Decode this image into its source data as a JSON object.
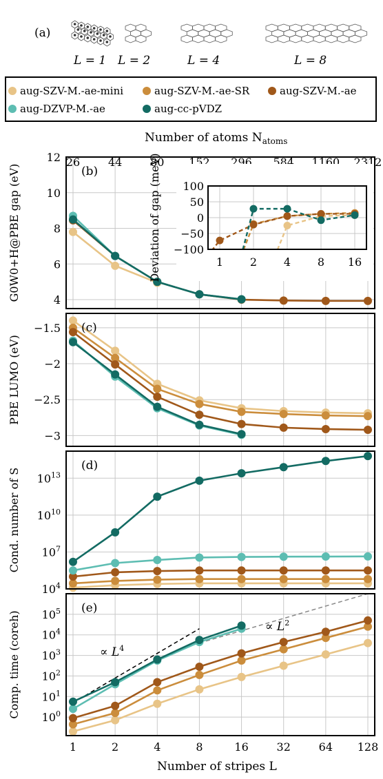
{
  "panel_a": {
    "label": "(a)",
    "items": [
      {
        "label": "L = 1",
        "rows": 3,
        "cols": 6
      },
      {
        "label": "L = 2",
        "rows": 3,
        "cols": 2
      },
      {
        "label": "L = 4",
        "rows": 3,
        "cols": 4
      },
      {
        "label": "L = 8",
        "rows": 3,
        "cols": 8
      }
    ]
  },
  "legend": [
    {
      "name": "aug-SZV-M.-ae-mini",
      "color": "#e8c487"
    },
    {
      "name": "aug-SZV-M.-ae-SR",
      "color": "#cb8d3c"
    },
    {
      "name": "aug-SZV-M.-ae",
      "color": "#a0581a"
    },
    {
      "name": "aug-DZVP-M.-ae",
      "color": "#5dbdb2"
    },
    {
      "name": "aug-cc-pVDZ",
      "color": "#136b63"
    }
  ],
  "top_axis": {
    "title": "Number of atoms N",
    "title_sub": "atoms",
    "ticks": [
      "26",
      "44",
      "80",
      "152",
      "296",
      "584",
      "1160",
      "2312"
    ]
  },
  "x_axis": {
    "title": "Number of stripes L",
    "ticks": [
      "1",
      "2",
      "4",
      "8",
      "16",
      "32",
      "64",
      "128"
    ],
    "values": [
      1,
      2,
      4,
      8,
      16,
      32,
      64,
      128
    ]
  },
  "chart_data": [
    {
      "id": "b",
      "label": "(b)",
      "type": "line",
      "ylabel": "G0W0+H@PBE gap (eV)",
      "ylim": [
        3.5,
        12
      ],
      "yticks": [
        4,
        6,
        8,
        10,
        12
      ],
      "yscale": "linear",
      "series": [
        {
          "name": "aug-SZV-M.-ae-mini",
          "x": [
            1,
            2,
            4
          ],
          "y": [
            7.8,
            5.9,
            4.95
          ]
        },
        {
          "name": "aug-SZV-M.-ae",
          "x": [
            1,
            2,
            4,
            8,
            16,
            32,
            64,
            128
          ],
          "y": [
            8.45,
            6.45,
            5.0,
            4.3,
            4.0,
            3.95,
            3.93,
            3.93
          ]
        },
        {
          "name": "aug-DZVP-M.-ae",
          "x": [
            1,
            2,
            4,
            8,
            16
          ],
          "y": [
            8.7,
            6.45,
            5.0,
            4.3,
            4.02
          ]
        },
        {
          "name": "aug-cc-pVDZ",
          "x": [
            1,
            2,
            4,
            8,
            16
          ],
          "y": [
            8.5,
            6.45,
            5.0,
            4.3,
            4.02
          ]
        }
      ],
      "inset": {
        "ylabel": "Deviation of gap (meV)",
        "ylim": [
          -100,
          100
        ],
        "yticks": [
          -100,
          -50,
          0,
          50,
          100
        ],
        "xticks": [
          "1",
          "2",
          "4",
          "8",
          "16"
        ],
        "xvalues": [
          1,
          2,
          4,
          8,
          16
        ],
        "series": [
          {
            "name": "aug-SZV-M.-ae-mini",
            "x": [
              4,
              8,
              16
            ],
            "y": [
              -25,
              5,
              8
            ]
          },
          {
            "name": "aug-SZV-M.-ae-SR",
            "x": [
              2,
              4,
              8,
              16
            ],
            "y": [
              -20,
              5,
              12,
              15
            ]
          },
          {
            "name": "aug-SZV-M.-ae",
            "x": [
              1,
              2,
              4,
              8,
              16
            ],
            "y": [
              -72,
              -22,
              5,
              12,
              12
            ]
          },
          {
            "name": "aug-cc-pVDZ",
            "x": [
              2,
              4,
              8,
              16
            ],
            "y": [
              28,
              28,
              -8,
              8
            ]
          }
        ]
      }
    },
    {
      "id": "c",
      "label": "(c)",
      "type": "line",
      "ylabel": "PBE LUMO (eV)",
      "ylim": [
        -3.15,
        -1.3
      ],
      "yticks": [
        -1.5,
        -2,
        -2.5,
        -3
      ],
      "yscale": "linear",
      "series": [
        {
          "name": "aug-SZV-M.-ae-mini",
          "x": [
            1,
            2,
            4,
            8,
            16,
            32,
            64,
            128
          ],
          "y": [
            -1.4,
            -1.82,
            -2.28,
            -2.51,
            -2.62,
            -2.66,
            -2.68,
            -2.69
          ]
        },
        {
          "name": "aug-SZV-M.-ae-SR",
          "x": [
            1,
            2,
            4,
            8,
            16,
            32,
            64,
            128
          ],
          "y": [
            -1.5,
            -1.92,
            -2.35,
            -2.56,
            -2.67,
            -2.7,
            -2.72,
            -2.73
          ]
        },
        {
          "name": "aug-SZV-M.-ae",
          "x": [
            1,
            2,
            4,
            8,
            16,
            32,
            64,
            128
          ],
          "y": [
            -1.56,
            -2.01,
            -2.46,
            -2.71,
            -2.84,
            -2.89,
            -2.91,
            -2.92
          ]
        },
        {
          "name": "aug-DZVP-M.-ae",
          "x": [
            1,
            2,
            4,
            8,
            16
          ],
          "y": [
            -1.68,
            -2.18,
            -2.62,
            -2.86,
            -2.99
          ]
        },
        {
          "name": "aug-cc-pVDZ",
          "x": [
            1,
            2,
            4,
            8,
            16
          ],
          "y": [
            -1.7,
            -2.15,
            -2.6,
            -2.85,
            -2.98
          ]
        }
      ]
    },
    {
      "id": "d",
      "label": "(d)",
      "type": "line",
      "ylabel": "Cond. number of S",
      "ylim": [
        4,
        15.2
      ],
      "yticks": [
        4,
        7,
        10,
        13
      ],
      "yscale": "log10",
      "series": [
        {
          "name": "aug-SZV-M.-ae-mini",
          "x": [
            1,
            2,
            4,
            8,
            16,
            32,
            64,
            128
          ],
          "y": [
            4.1,
            4.3,
            4.4,
            4.45,
            4.45,
            4.45,
            4.45,
            4.45
          ]
        },
        {
          "name": "aug-SZV-M.-ae-SR",
          "x": [
            1,
            2,
            4,
            8,
            16,
            32,
            64,
            128
          ],
          "y": [
            4.45,
            4.65,
            4.75,
            4.8,
            4.8,
            4.8,
            4.8,
            4.8
          ]
        },
        {
          "name": "aug-SZV-M.-ae",
          "x": [
            1,
            2,
            4,
            8,
            16,
            32,
            64,
            128
          ],
          "y": [
            5.0,
            5.35,
            5.45,
            5.5,
            5.5,
            5.5,
            5.5,
            5.5
          ]
        },
        {
          "name": "aug-DZVP-M.-ae",
          "x": [
            1,
            2,
            4,
            8,
            16,
            32,
            64,
            128
          ],
          "y": [
            5.5,
            6.1,
            6.35,
            6.55,
            6.6,
            6.62,
            6.63,
            6.64
          ]
        },
        {
          "name": "aug-cc-pVDZ",
          "x": [
            1,
            2,
            4,
            8,
            16,
            32,
            64,
            128
          ],
          "y": [
            6.2,
            8.6,
            11.5,
            12.8,
            13.4,
            13.9,
            14.4,
            14.8
          ]
        }
      ]
    },
    {
      "id": "e",
      "label": "(e)",
      "type": "line",
      "ylabel": "Comp. time (coreh)",
      "ylim": [
        -0.9,
        6
      ],
      "yticks": [
        0,
        1,
        2,
        3,
        4,
        5
      ],
      "yscale": "log10",
      "series": [
        {
          "name": "aug-SZV-M.-ae-mini",
          "x": [
            1,
            2,
            4,
            8,
            16,
            32,
            64,
            128
          ],
          "y": [
            -0.7,
            -0.15,
            0.65,
            1.35,
            1.95,
            2.5,
            3.05,
            3.6
          ]
        },
        {
          "name": "aug-SZV-M.-ae-SR",
          "x": [
            1,
            2,
            4,
            8,
            16,
            32,
            64,
            128
          ],
          "y": [
            -0.35,
            0.2,
            1.3,
            2.05,
            2.75,
            3.3,
            3.85,
            4.4
          ]
        },
        {
          "name": "aug-SZV-M.-ae",
          "x": [
            1,
            2,
            4,
            8,
            16,
            32,
            64,
            128
          ],
          "y": [
            -0.05,
            0.55,
            1.7,
            2.45,
            3.1,
            3.65,
            4.15,
            4.7
          ]
        },
        {
          "name": "aug-DZVP-M.-ae",
          "x": [
            1,
            2,
            4,
            8,
            16
          ],
          "y": [
            0.4,
            1.6,
            2.75,
            3.65,
            4.3
          ]
        },
        {
          "name": "aug-cc-pVDZ",
          "x": [
            1,
            2,
            4,
            8,
            16
          ],
          "y": [
            0.75,
            1.7,
            2.8,
            3.75,
            4.45
          ]
        }
      ],
      "guides": [
        {
          "label": "∝ L",
          "sup": "4",
          "color": "#000000",
          "x": [
            1,
            8
          ],
          "y": [
            0.7,
            4.3
          ]
        },
        {
          "label": "∝ L",
          "sup": "2",
          "color": "#888888",
          "x": [
            8,
            128
          ],
          "y": [
            3.6,
            6.0
          ]
        }
      ]
    }
  ]
}
